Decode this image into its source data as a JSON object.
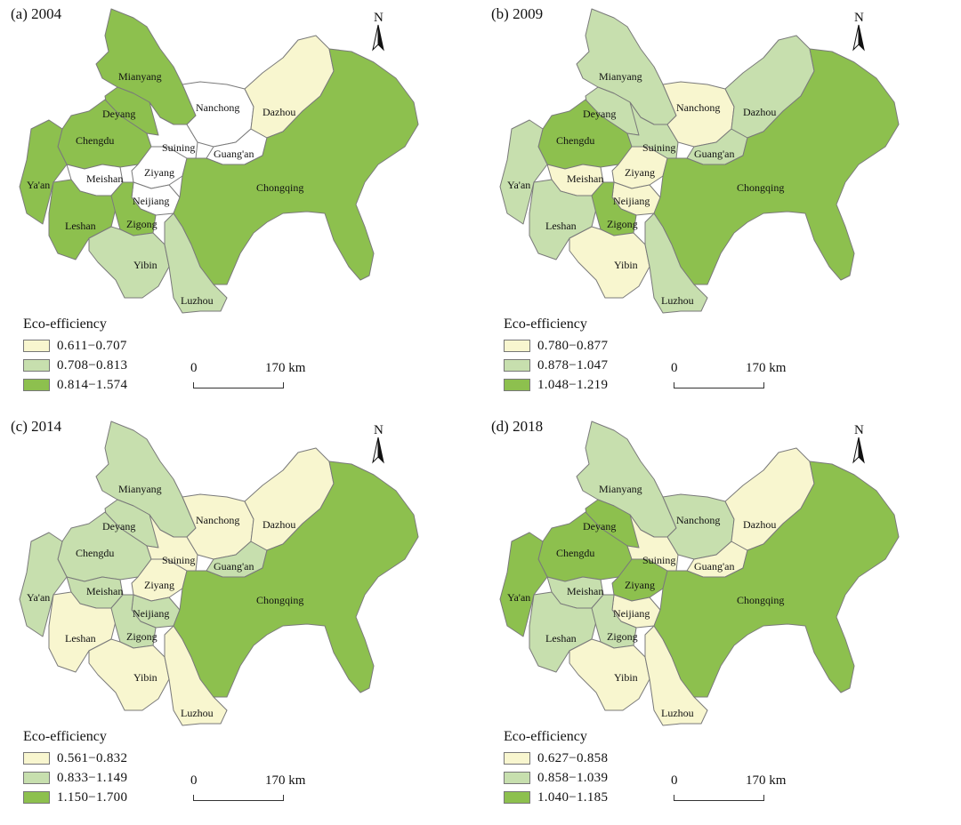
{
  "colors": {
    "class1": "#f8f6cf",
    "class2": "#c7dfae",
    "class3": "#8dc04e",
    "none": "#ffffff"
  },
  "legend_title": "Eco-efficiency",
  "north_label": "N",
  "scale": {
    "start": "0",
    "distance": "170 km"
  },
  "cities": [
    {
      "id": "mianyang",
      "label": "Mianyang"
    },
    {
      "id": "deyang",
      "label": "Deyang"
    },
    {
      "id": "chengdu",
      "label": "Chengdu"
    },
    {
      "id": "yaan",
      "label": "Ya'an"
    },
    {
      "id": "meishan",
      "label": "Meishan"
    },
    {
      "id": "leshan",
      "label": "Leshan"
    },
    {
      "id": "ziyang",
      "label": "Ziyang"
    },
    {
      "id": "neijiang",
      "label": "Neijiang"
    },
    {
      "id": "zigong",
      "label": "Zigong"
    },
    {
      "id": "yibin",
      "label": "Yibin"
    },
    {
      "id": "luzhou",
      "label": "Luzhou"
    },
    {
      "id": "suining",
      "label": "Suining"
    },
    {
      "id": "nanchong",
      "label": "Nanchong"
    },
    {
      "id": "guangan",
      "label": "Guang'an"
    },
    {
      "id": "dazhou",
      "label": "Dazhou"
    },
    {
      "id": "chongqing",
      "label": "Chongqing"
    }
  ],
  "panels": [
    {
      "title": "(a) 2004",
      "legend": [
        "0.611−0.707",
        "0.708−0.813",
        "0.814−1.574"
      ],
      "classes": {
        "mianyang": 3,
        "deyang": 3,
        "chengdu": 3,
        "yaan": 3,
        "meishan": 0,
        "leshan": 3,
        "ziyang": 0,
        "neijiang": 0,
        "zigong": 3,
        "yibin": 2,
        "luzhou": 2,
        "suining": 0,
        "nanchong": 0,
        "guangan": 0,
        "dazhou": 1,
        "chongqing": 3
      }
    },
    {
      "title": "(b) 2009",
      "legend": [
        "0.780−0.877",
        "0.878−1.047",
        "1.048−1.219"
      ],
      "classes": {
        "mianyang": 2,
        "deyang": 2,
        "chengdu": 3,
        "yaan": 2,
        "meishan": 1,
        "leshan": 2,
        "ziyang": 1,
        "neijiang": 1,
        "zigong": 3,
        "yibin": 1,
        "luzhou": 2,
        "suining": 2,
        "nanchong": 1,
        "guangan": 2,
        "dazhou": 2,
        "chongqing": 3
      }
    },
    {
      "title": "(c) 2014",
      "legend": [
        "0.561−0.832",
        "0.833−1.149",
        "1.150−1.700"
      ],
      "classes": {
        "mianyang": 2,
        "deyang": 2,
        "chengdu": 2,
        "yaan": 2,
        "meishan": 2,
        "leshan": 1,
        "ziyang": 1,
        "neijiang": 2,
        "zigong": 2,
        "yibin": 1,
        "luzhou": 1,
        "suining": 1,
        "nanchong": 1,
        "guangan": 2,
        "dazhou": 1,
        "chongqing": 3
      }
    },
    {
      "title": "(d) 2018",
      "legend": [
        "0.627−0.858",
        "0.858−1.039",
        "1.040−1.185"
      ],
      "classes": {
        "mianyang": 2,
        "deyang": 3,
        "chengdu": 3,
        "yaan": 3,
        "meishan": 2,
        "leshan": 2,
        "ziyang": 3,
        "neijiang": 1,
        "zigong": 2,
        "yibin": 1,
        "luzhou": 1,
        "suining": 1,
        "nanchong": 2,
        "guangan": 1,
        "dazhou": 1,
        "chongqing": 3
      }
    }
  ]
}
